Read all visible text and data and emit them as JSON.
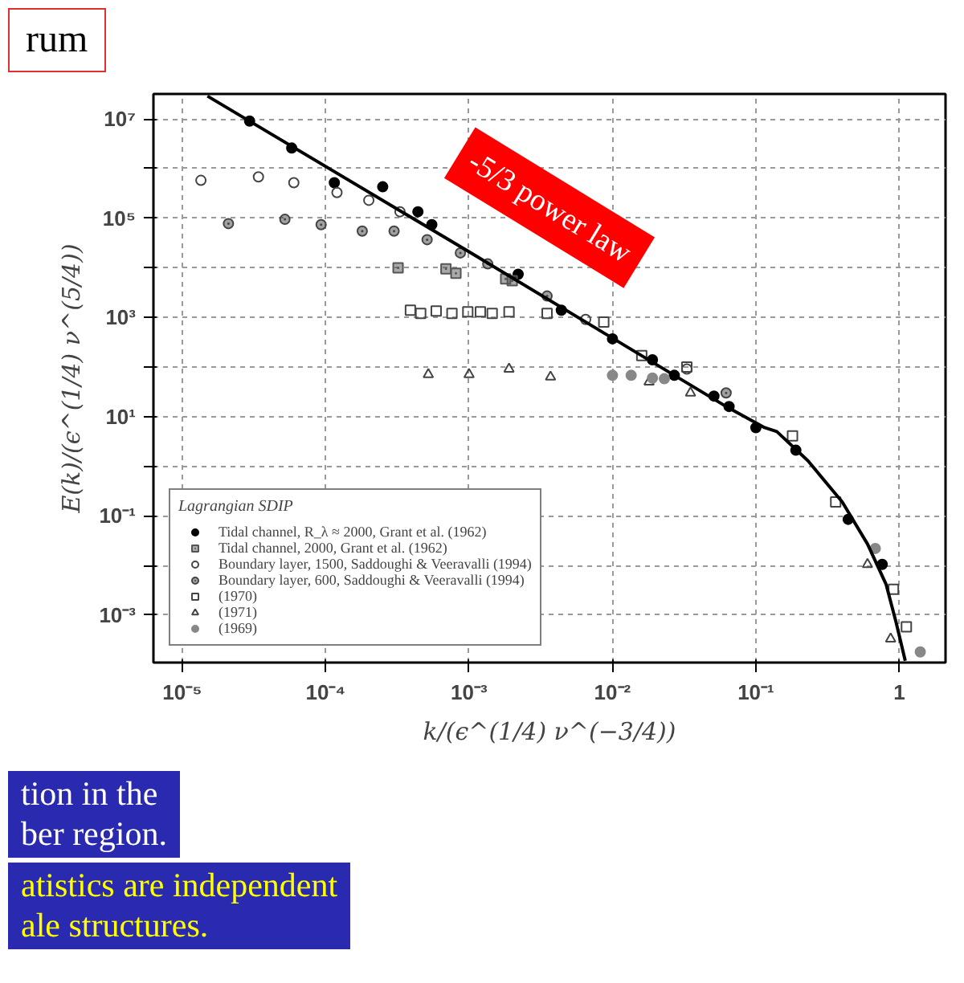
{
  "chart_data": {
    "type": "scatter",
    "xlabel": "k/(ϵ^(1/4) ν^(−3/4))",
    "ylabel": "E(k)/(ϵ^(1/4) ν^(5/4))",
    "legend_title": "Lagrangian SDIP",
    "log": "xy",
    "grid": true,
    "legend": "bottom left",
    "xlim": [
      6.3e-06,
      2.1
    ],
    "ylim": [
      0.00011,
      32000000.0
    ],
    "xticks": [
      {
        "value": 1e-05,
        "label": "10⁻⁵"
      },
      {
        "value": 0.0001,
        "label": "10⁻⁴"
      },
      {
        "value": 0.001,
        "label": "10⁻³"
      },
      {
        "value": 0.01,
        "label": "10⁻²"
      },
      {
        "value": 0.1,
        "label": "10⁻¹"
      },
      {
        "value": 1,
        "label": "1"
      }
    ],
    "yticks": [
      {
        "value": 0.001,
        "label": "10⁻³"
      },
      {
        "value": 0.01,
        "label": null
      },
      {
        "value": 0.1,
        "label": "10⁻¹"
      },
      {
        "value": 1,
        "label": null
      },
      {
        "value": 10,
        "label": "10¹"
      },
      {
        "value": 100,
        "label": null
      },
      {
        "value": 1000,
        "label": "10³"
      },
      {
        "value": 10000.0,
        "label": null
      },
      {
        "value": 100000.0,
        "label": "10⁵"
      },
      {
        "value": 1000000.0,
        "label": null
      },
      {
        "value": 10000000.0,
        "label": "10⁷"
      }
    ],
    "series": [
      {
        "name": "Tidal channel, R_λ ≈ 2000, Grant et al. (1962)",
        "color": "#000000",
        "marker": "circle",
        "x": [
          2.95e-05,
          5.8e-05,
          0.000115,
          0.00025,
          0.00044,
          0.00055,
          0.0022,
          0.0044,
          0.01,
          0.019,
          0.027,
          0.051,
          0.065,
          0.1,
          0.19,
          0.44,
          0.76
        ],
        "values": [
          9100000.0,
          2600000.0,
          520000.0,
          430000.0,
          135000.0,
          74000.0,
          7400.0,
          1400.0,
          370,
          140,
          68,
          26,
          16,
          6.0,
          2.1,
          0.085,
          0.0105
        ]
      },
      {
        "name": "Tidal channel, 2000, Grant et al. (1962)",
        "color": "#555555",
        "marker": "square_dot",
        "x": [
          0.00032,
          0.00069,
          0.00081,
          0.0018,
          0.002
        ],
        "values": [
          10000.0,
          9500.0,
          7800.0,
          6000.0,
          5500.0
        ]
      },
      {
        "name": "Boundary layer, 1500, Saddoughi & Veeravalli (1994)",
        "color": "#444444",
        "marker": "circle_open",
        "x": [
          1.35e-05,
          3.4e-05,
          6e-05,
          0.00012,
          0.0002,
          0.00033,
          0.0065,
          0.033
        ],
        "values": [
          580000.0,
          680000.0,
          520000.0,
          330000.0,
          230000.0,
          135000.0,
          910,
          91
        ]
      },
      {
        "name": "Boundary layer, 600, Saddoughi & Veeravalli (1994)",
        "color": "#444444",
        "marker": "circle_dot",
        "x": [
          2.1e-05,
          5.2e-05,
          9.3e-05,
          0.00018,
          0.0003,
          0.00051,
          0.00087,
          0.00135,
          0.0035,
          0.062
        ],
        "values": [
          78000.0,
          95000.0,
          74000.0,
          55000.0,
          55000.0,
          37000.0,
          20000.0,
          12000.0,
          2700.0,
          30
        ]
      },
      {
        "name": "(1970)",
        "color": "#444444",
        "marker": "square_open",
        "x": [
          0.00039,
          0.00046,
          0.00059,
          0.00076,
          0.00098,
          0.0012,
          0.00145,
          0.0019,
          0.0035,
          0.0087,
          0.016,
          0.033,
          0.18,
          0.36,
          0.91,
          1.12
        ],
        "values": [
          1400.0,
          1200.0,
          1350.0,
          1200.0,
          1300.0,
          1300.0,
          1200.0,
          1300.0,
          1200.0,
          810,
          170,
          100,
          4.1,
          0.19,
          0.0033,
          0.00058
        ]
      },
      {
        "name": "(1971)",
        "color": "#444444",
        "marker": "triangle_open",
        "x": [
          0.00052,
          0.001,
          0.0019,
          0.0037,
          0.018,
          0.035,
          0.6,
          0.87
        ],
        "values": [
          71,
          71,
          91,
          63,
          50,
          30,
          0.0105,
          0.00033
        ]
      },
      {
        "name": "(1969)",
        "color": "#888888",
        "marker": "circle",
        "x": [
          0.01,
          0.0135,
          0.019,
          0.023,
          0.68,
          1.4
        ],
        "values": [
          68,
          68,
          60,
          58,
          0.022,
          0.00018
        ]
      },
      {
        "type": "line",
        "color": "#000000",
        "x": [
          1.5e-05,
          0.001,
          0.062,
          0.115,
          0.14,
          0.23,
          0.4,
          0.6,
          0.81,
          0.95,
          1.1
        ],
        "values": [
          29000000.0,
          21000.0,
          16,
          6.0,
          5.0,
          1.3,
          0.19,
          0.027,
          0.0041,
          0.00071,
          0.00012
        ]
      }
    ],
    "annotations": [
      "rum",
      "-5/3 power law",
      "tion in the\nber region.",
      "atistics are independent\nale structures."
    ]
  }
}
